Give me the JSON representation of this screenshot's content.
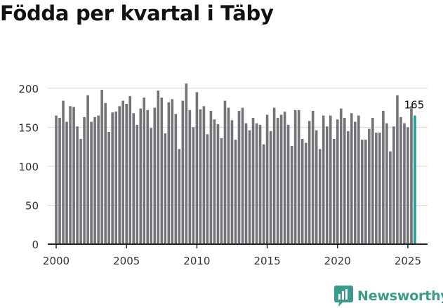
{
  "brand": {
    "name": "Newsworthy",
    "color": "#3a9a8c",
    "icon": "bar-chart-speech-icon"
  },
  "colors": {
    "bar": "#747378",
    "highlight": "#1a9e9a",
    "axis": "#222222",
    "grid": "#d9d9d9",
    "text": "#333333"
  },
  "chart_data": {
    "type": "bar",
    "title": "Födda per kvartal i Täby",
    "xlabel": "",
    "ylabel": "",
    "ylim": [
      0,
      225
    ],
    "yticks": [
      0,
      50,
      100,
      150,
      200
    ],
    "xticks": [
      2000,
      2005,
      2010,
      2015,
      2020,
      2025
    ],
    "xlim": [
      1999.4,
      2026.4
    ],
    "grid": true,
    "start": [
      2000,
      1
    ],
    "values": [
      165,
      162,
      184,
      157,
      177,
      176,
      151,
      135,
      163,
      191,
      157,
      163,
      165,
      198,
      181,
      144,
      169,
      170,
      177,
      184,
      180,
      190,
      168,
      153,
      174,
      188,
      172,
      149,
      175,
      197,
      188,
      142,
      182,
      186,
      167,
      122,
      184,
      206,
      172,
      150,
      195,
      173,
      177,
      141,
      171,
      160,
      154,
      136,
      184,
      175,
      159,
      134,
      171,
      175,
      155,
      146,
      162,
      155,
      153,
      128,
      166,
      145,
      175,
      162,
      166,
      170,
      153,
      126,
      172,
      172,
      135,
      130,
      158,
      171,
      146,
      122,
      165,
      151,
      165,
      135,
      160,
      174,
      162,
      145,
      168,
      157,
      165,
      134,
      134,
      148,
      162,
      143,
      143,
      171,
      155,
      119,
      151,
      191,
      163,
      155,
      150,
      177,
      165
    ],
    "annotation": {
      "text": "165"
    }
  }
}
